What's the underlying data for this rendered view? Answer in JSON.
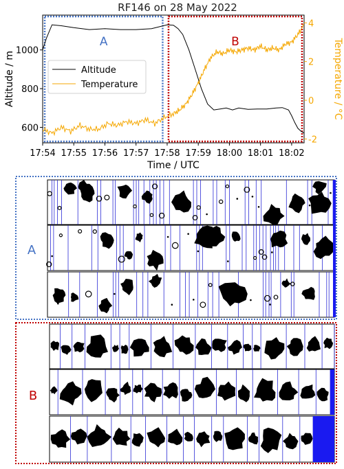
{
  "chart_data": [
    {
      "type": "line",
      "title": "RF146 on 28 May 2022",
      "xlabel": "Time / UTC",
      "ylabel_left": "Altitude / m",
      "ylabel_right": "Temperature / °C",
      "x_ticks": [
        "17:54",
        "17:55",
        "17:56",
        "17:57",
        "17:58",
        "17:59",
        "18:00",
        "18:01",
        "18:02"
      ],
      "xlim_minutes_after_1754": [
        0,
        8.4
      ],
      "y_left_ticks": [
        600,
        800,
        1000
      ],
      "y_left_lim": [
        520,
        1180
      ],
      "y_right_ticks": [
        -2,
        0,
        2,
        4
      ],
      "y_right_lim": [
        -2.2,
        4.4
      ],
      "legend": {
        "placement": "upper-left",
        "entries": [
          "Altitude",
          "Temperature"
        ]
      },
      "series": [
        {
          "name": "Altitude",
          "axis": "left",
          "color": "#000000",
          "x": [
            0,
            0.12,
            0.3,
            0.6,
            1.0,
            1.5,
            2.0,
            2.5,
            3.0,
            3.5,
            4.0,
            4.2,
            4.35,
            4.5,
            4.7,
            4.9,
            5.1,
            5.3,
            5.5,
            5.7,
            5.9,
            6.1,
            6.3,
            6.6,
            6.9,
            7.2,
            7.5,
            7.7,
            7.9,
            8.0,
            8.1,
            8.2,
            8.3,
            8.4
          ],
          "values": [
            1000,
            1060,
            1130,
            1125,
            1115,
            1105,
            1110,
            1105,
            1105,
            1110,
            1130,
            1128,
            1110,
            1080,
            1000,
            900,
            800,
            720,
            690,
            695,
            700,
            690,
            700,
            693,
            695,
            695,
            700,
            702,
            690,
            660,
            625,
            595,
            580,
            570
          ]
        },
        {
          "name": "Temperature",
          "axis": "right",
          "color": "#f5a700",
          "x": [
            0,
            0.3,
            0.6,
            0.9,
            1.2,
            1.5,
            1.8,
            2.1,
            2.4,
            2.7,
            3.0,
            3.3,
            3.6,
            3.9,
            4.2,
            4.4,
            4.6,
            4.8,
            5.0,
            5.2,
            5.4,
            5.6,
            5.8,
            6.0,
            6.2,
            6.4,
            6.6,
            6.8,
            7.0,
            7.2,
            7.4,
            7.6,
            7.8,
            8.0,
            8.2,
            8.4
          ],
          "values": [
            -1.5,
            -1.7,
            -1.4,
            -1.6,
            -1.3,
            -1.5,
            -1.5,
            -1.2,
            -1.3,
            -1.1,
            -1.2,
            -1.0,
            -1.2,
            -0.9,
            -0.7,
            -0.5,
            -0.2,
            0.3,
            0.9,
            1.6,
            2.2,
            2.5,
            2.4,
            2.6,
            2.5,
            2.6,
            2.7,
            2.6,
            2.8,
            2.6,
            2.7,
            2.6,
            2.9,
            3.0,
            3.4,
            3.9
          ]
        }
      ],
      "annotations": [
        {
          "label": "A",
          "color": "#4472c4",
          "x_range": [
            0,
            3.9
          ]
        },
        {
          "label": "B",
          "color": "#c00000",
          "x_range": [
            4.0,
            8.4
          ]
        }
      ]
    }
  ],
  "panels": [
    {
      "label": "A",
      "color": "#4472c4",
      "strip_line_color": "#2b2bd6"
    },
    {
      "label": "B",
      "color": "#c00000",
      "strip_line_color": "#2b2bd6"
    }
  ]
}
